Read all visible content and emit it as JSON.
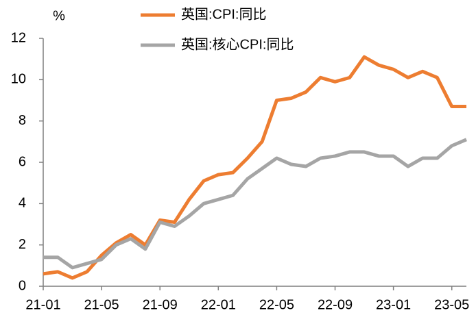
{
  "chart_data": {
    "type": "line",
    "y_unit": "%",
    "categories": [
      "21-01",
      null,
      null,
      null,
      "21-05",
      null,
      null,
      null,
      "21-09",
      null,
      null,
      null,
      "22-01",
      null,
      null,
      null,
      "22-05",
      null,
      null,
      null,
      "22-09",
      null,
      null,
      null,
      "23-01",
      null,
      null,
      null,
      "23-05",
      null
    ],
    "series": [
      {
        "name": "英国:CPI:同比",
        "color": "#ed7d31",
        "values": [
          0.6,
          0.7,
          0.4,
          0.7,
          1.5,
          2.1,
          2.5,
          2.0,
          3.2,
          3.1,
          4.2,
          5.1,
          5.4,
          5.5,
          6.2,
          7.0,
          9.0,
          9.1,
          9.4,
          10.1,
          9.9,
          10.1,
          11.1,
          10.7,
          10.5,
          10.1,
          10.4,
          10.1,
          8.7,
          8.7
        ]
      },
      {
        "name": "英国:核心CPI:同比",
        "color": "#a5a5a5",
        "values": [
          1.4,
          1.4,
          0.9,
          1.1,
          1.3,
          2.0,
          2.3,
          1.8,
          3.1,
          2.9,
          3.4,
          4.0,
          4.2,
          4.4,
          5.2,
          5.7,
          6.2,
          5.9,
          5.8,
          6.2,
          6.3,
          6.5,
          6.5,
          6.3,
          6.3,
          5.8,
          6.2,
          6.2,
          6.8,
          7.1
        ]
      }
    ],
    "ylim": [
      0,
      12
    ],
    "yticks": [
      0,
      2,
      4,
      6,
      8,
      10,
      12
    ],
    "grid": false
  }
}
